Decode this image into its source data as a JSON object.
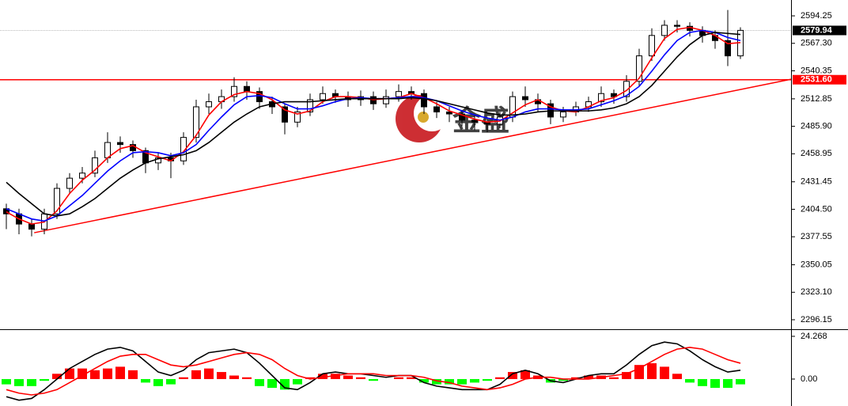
{
  "chart_data": [
    {
      "type": "candlestick",
      "ylim": [
        2287.6,
        2609.8
      ],
      "yticks": [
        2594.25,
        {
          "value": 2567.3,
          "label": "2567.30"
        },
        2540.35,
        2512.85,
        {
          "value": 2485.9,
          "label": "2485.90"
        },
        2458.95,
        2431.45,
        {
          "value": 2404.5,
          "label": "2404.50"
        },
        2377.55,
        2350.05,
        {
          "value": 2323.1,
          "label": "2323.10"
        },
        2296.15
      ],
      "open": [
        2405,
        2400,
        2390,
        2385,
        2400,
        2425,
        2435,
        2440,
        2455,
        2470,
        2468,
        2462,
        2450,
        2455,
        2452,
        2475,
        2505,
        2510,
        2515,
        2525,
        2520,
        2510,
        2505,
        2490,
        2500,
        2512,
        2518,
        2515,
        2512,
        2515,
        2508,
        2515,
        2520,
        2518,
        2505,
        2500,
        2498,
        2492,
        2490,
        2488,
        2495,
        2515,
        2512,
        2508,
        2495,
        2500,
        2505,
        2510,
        2518,
        2515,
        2530,
        2555,
        2575,
        2585,
        2584,
        2580,
        2575,
        2570,
        2555
      ],
      "high": [
        2410,
        2405,
        2395,
        2405,
        2430,
        2440,
        2446,
        2462,
        2480,
        2476,
        2472,
        2465,
        2460,
        2460,
        2480,
        2512,
        2518,
        2522,
        2534,
        2530,
        2524,
        2515,
        2508,
        2505,
        2518,
        2525,
        2522,
        2520,
        2521,
        2520,
        2522,
        2527,
        2525,
        2522,
        2510,
        2505,
        2502,
        2497,
        2495,
        2500,
        2520,
        2525,
        2518,
        2512,
        2505,
        2510,
        2515,
        2525,
        2522,
        2536,
        2562,
        2582,
        2590,
        2590,
        2588,
        2584,
        2580,
        2600,
        2583
      ],
      "low": [
        2385,
        2380,
        2378,
        2380,
        2395,
        2420,
        2430,
        2436,
        2450,
        2460,
        2455,
        2440,
        2443,
        2435,
        2448,
        2470,
        2498,
        2503,
        2510,
        2512,
        2503,
        2498,
        2478,
        2485,
        2496,
        2508,
        2509,
        2505,
        2506,
        2502,
        2504,
        2510,
        2512,
        2498,
        2494,
        2490,
        2486,
        2482,
        2480,
        2484,
        2490,
        2505,
        2500,
        2488,
        2490,
        2496,
        2500,
        2505,
        2508,
        2510,
        2525,
        2550,
        2570,
        2578,
        2574,
        2568,
        2562,
        2545,
        2552
      ],
      "close": [
        2400,
        2390,
        2385,
        2400,
        2425,
        2435,
        2440,
        2455,
        2470,
        2468,
        2462,
        2450,
        2455,
        2452,
        2475,
        2505,
        2510,
        2515,
        2525,
        2520,
        2510,
        2505,
        2490,
        2500,
        2512,
        2518,
        2515,
        2512,
        2515,
        2508,
        2515,
        2520,
        2518,
        2505,
        2500,
        2498,
        2492,
        2490,
        2488,
        2495,
        2515,
        2512,
        2508,
        2495,
        2500,
        2505,
        2510,
        2518,
        2515,
        2530,
        2555,
        2575,
        2585,
        2584,
        2580,
        2575,
        2570,
        2555,
        2580
      ],
      "up_color": "#ffffff",
      "down_color": "#000000",
      "moving_averages": [
        {
          "color": "#ff0000",
          "values": [
            2402,
            2395,
            2390,
            2392,
            2403,
            2420,
            2433,
            2443,
            2455,
            2464,
            2467,
            2460,
            2456,
            2452,
            2461,
            2477,
            2497,
            2510,
            2517,
            2520,
            2518,
            2512,
            2502,
            2498,
            2501,
            2510,
            2515,
            2515,
            2514,
            2512,
            2513,
            2514,
            2518,
            2514,
            2508,
            2501,
            2497,
            2493,
            2490,
            2491,
            2499,
            2507,
            2512,
            2505,
            2501,
            2500,
            2505,
            2511,
            2514,
            2521,
            2533,
            2553,
            2572,
            2581,
            2583,
            2580,
            2575,
            2567,
            2568
          ]
        },
        {
          "color": "#0000ff",
          "values": [
            2405,
            2400,
            2395,
            2393,
            2398,
            2408,
            2418,
            2430,
            2442,
            2452,
            2460,
            2461,
            2460,
            2457,
            2460,
            2468,
            2482,
            2495,
            2507,
            2515,
            2516,
            2514,
            2508,
            2503,
            2503,
            2506,
            2510,
            2513,
            2514,
            2513,
            2513,
            2514,
            2515,
            2514,
            2511,
            2506,
            2501,
            2497,
            2494,
            2492,
            2495,
            2500,
            2503,
            2503,
            2502,
            2502,
            2503,
            2507,
            2511,
            2516,
            2525,
            2540,
            2556,
            2570,
            2578,
            2580,
            2578,
            2573,
            2570
          ]
        },
        {
          "color": "#000000",
          "values": [
            2431,
            2420,
            2410,
            2400,
            2398,
            2400,
            2407,
            2415,
            2425,
            2435,
            2443,
            2450,
            2454,
            2456,
            2458,
            2462,
            2470,
            2480,
            2490,
            2498,
            2505,
            2508,
            2510,
            2510,
            2510,
            2511,
            2512,
            2513,
            2513,
            2513,
            2513,
            2513,
            2514,
            2513,
            2511,
            2508,
            2505,
            2502,
            2499,
            2497,
            2497,
            2498,
            2500,
            2501,
            2501,
            2501,
            2501,
            2502,
            2504,
            2508,
            2515,
            2526,
            2540,
            2554,
            2566,
            2575,
            2578,
            2577,
            2576
          ]
        }
      ],
      "current_price": 2579.94,
      "level": {
        "value": 2531.6,
        "label": "2531.60",
        "color": "#ff0000"
      },
      "trendline": {
        "x": [
          2.2,
          62
        ],
        "values": [
          2381.5,
          2532.1
        ],
        "color": "#ff0000"
      },
      "watermark": "金盛"
    },
    {
      "type": "macd",
      "ylim": [
        -15.3,
        27.4
      ],
      "yticks": [
        24.268,
        {
          "value": 0,
          "label": "0.00"
        }
      ],
      "histogram": {
        "up_color": "#ff0000",
        "down_color": "#00ff00",
        "values": [
          -3,
          -4,
          -4,
          -1,
          3,
          6,
          6,
          5,
          6,
          7,
          5,
          -2,
          -4,
          -3,
          1,
          5,
          6,
          4,
          2,
          1,
          -4,
          -5,
          -6,
          -3,
          1,
          3,
          3,
          2,
          1,
          -1,
          0,
          1,
          1,
          -2,
          -3,
          -3,
          -3,
          -2,
          -1,
          1,
          4,
          5,
          2,
          -2,
          -1,
          1,
          2,
          2,
          1,
          4,
          8,
          9,
          7,
          3,
          -2,
          -4,
          -5,
          -5,
          -3
        ]
      },
      "series": [
        {
          "color": "#000000",
          "values": [
            -10,
            -12,
            -11,
            -6,
            0,
            6,
            10,
            14,
            17,
            18,
            16,
            10,
            4,
            2,
            5,
            11,
            15,
            16,
            17,
            15,
            9,
            2,
            -5,
            -6,
            -2,
            3,
            4,
            3,
            3,
            2,
            1,
            2,
            2,
            -2,
            -4,
            -5,
            -6,
            -6,
            -6,
            -3,
            3,
            5,
            3,
            -1,
            -2,
            0,
            2,
            3,
            3,
            8,
            14,
            19,
            21,
            20,
            16,
            11,
            7,
            4,
            5
          ]
        },
        {
          "color": "#ff0000",
          "values": [
            -6,
            -8,
            -9,
            -8,
            -6,
            -2,
            2,
            6,
            10,
            13,
            14,
            14,
            11,
            8,
            7,
            8,
            10,
            12,
            14,
            15,
            14,
            11,
            6,
            2,
            0,
            1,
            2,
            3,
            3,
            3,
            2,
            2,
            2,
            1,
            -1,
            -2,
            -4,
            -5,
            -6,
            -5,
            -3,
            0,
            1,
            1,
            0,
            0,
            0,
            1,
            2,
            3,
            6,
            10,
            14,
            17,
            18,
            17,
            14,
            11,
            9
          ]
        }
      ]
    }
  ]
}
